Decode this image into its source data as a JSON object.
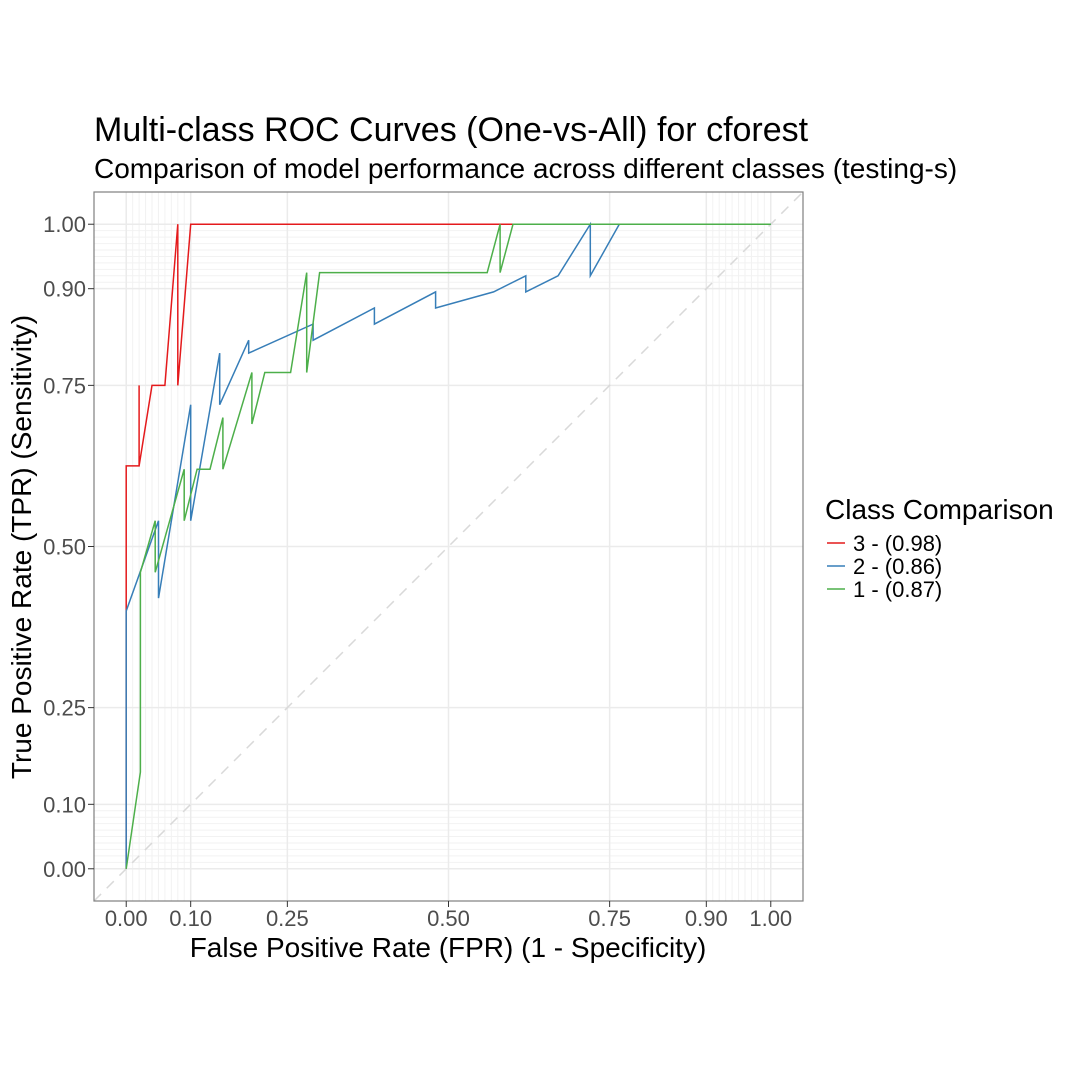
{
  "chart_data": {
    "type": "line",
    "title": "Multi-class ROC Curves (One-vs-All) for cforest",
    "subtitle": "Comparison of model performance across different classes (testing-s)",
    "xlabel": "False Positive Rate (FPR) (1 - Specificity)",
    "ylabel": "True Positive Rate (TPR) (Sensitivity)",
    "xlim": [
      -0.05,
      1.05
    ],
    "ylim": [
      -0.05,
      1.05
    ],
    "x_ticks": [
      "0.00",
      "0.10",
      "0.25",
      "0.50",
      "0.75",
      "0.90",
      "1.00"
    ],
    "y_ticks": [
      "0.00",
      "0.10",
      "0.25",
      "0.50",
      "0.75",
      "0.90",
      "1.00"
    ],
    "x_tick_values": [
      0.0,
      0.1,
      0.25,
      0.5,
      0.75,
      0.9,
      1.0
    ],
    "y_tick_values": [
      0.0,
      0.1,
      0.25,
      0.5,
      0.75,
      0.9,
      1.0
    ],
    "minor_grid": [
      0.01,
      0.02,
      0.03,
      0.04,
      0.05,
      0.06,
      0.07,
      0.08,
      0.09,
      0.91,
      0.92,
      0.93,
      0.94,
      0.95,
      0.96,
      0.97,
      0.98,
      0.99
    ],
    "grid": true,
    "diagonal_reference": true,
    "legend": {
      "title": "Class Comparison",
      "position": "right"
    },
    "series": [
      {
        "name": "3 - (0.98)",
        "color": "#E41A1C",
        "points": [
          [
            0,
            0
          ],
          [
            0,
            0.625
          ],
          [
            0.02,
            0.625
          ],
          [
            0.02,
            0.75
          ],
          [
            0.02,
            0.625
          ],
          [
            0.04,
            0.75
          ],
          [
            0.06,
            0.75
          ],
          [
            0.08,
            1.0
          ],
          [
            0.08,
            0.75
          ],
          [
            0.1,
            1.0
          ],
          [
            0.6,
            1.0
          ]
        ]
      },
      {
        "name": "2 - (0.86)",
        "color": "#377EB8",
        "points": [
          [
            0,
            0
          ],
          [
            0,
            0.4
          ],
          [
            0.05,
            0.54
          ],
          [
            0.05,
            0.42
          ],
          [
            0.1,
            0.72
          ],
          [
            0.1,
            0.54
          ],
          [
            0.145,
            0.8
          ],
          [
            0.145,
            0.72
          ],
          [
            0.19,
            0.82
          ],
          [
            0.19,
            0.8
          ],
          [
            0.29,
            0.845
          ],
          [
            0.29,
            0.82
          ],
          [
            0.385,
            0.87
          ],
          [
            0.385,
            0.845
          ],
          [
            0.48,
            0.895
          ],
          [
            0.48,
            0.87
          ],
          [
            0.57,
            0.895
          ],
          [
            0.62,
            0.92
          ],
          [
            0.62,
            0.895
          ],
          [
            0.67,
            0.92
          ],
          [
            0.72,
            1.0
          ],
          [
            0.72,
            0.92
          ],
          [
            0.765,
            1.0
          ],
          [
            1.0,
            1.0
          ]
        ]
      },
      {
        "name": "1 - (0.87)",
        "color": "#4DAF4A",
        "points": [
          [
            0,
            0
          ],
          [
            0.022,
            0.15
          ],
          [
            0.022,
            0.46
          ],
          [
            0.045,
            0.54
          ],
          [
            0.045,
            0.46
          ],
          [
            0.09,
            0.62
          ],
          [
            0.09,
            0.54
          ],
          [
            0.11,
            0.62
          ],
          [
            0.13,
            0.62
          ],
          [
            0.15,
            0.7
          ],
          [
            0.15,
            0.62
          ],
          [
            0.195,
            0.77
          ],
          [
            0.195,
            0.69
          ],
          [
            0.215,
            0.77
          ],
          [
            0.255,
            0.77
          ],
          [
            0.28,
            0.925
          ],
          [
            0.28,
            0.77
          ],
          [
            0.3,
            0.925
          ],
          [
            0.56,
            0.925
          ],
          [
            0.58,
            1.0
          ],
          [
            0.58,
            0.925
          ],
          [
            0.6,
            1.0
          ],
          [
            1.0,
            1.0
          ]
        ]
      }
    ]
  }
}
